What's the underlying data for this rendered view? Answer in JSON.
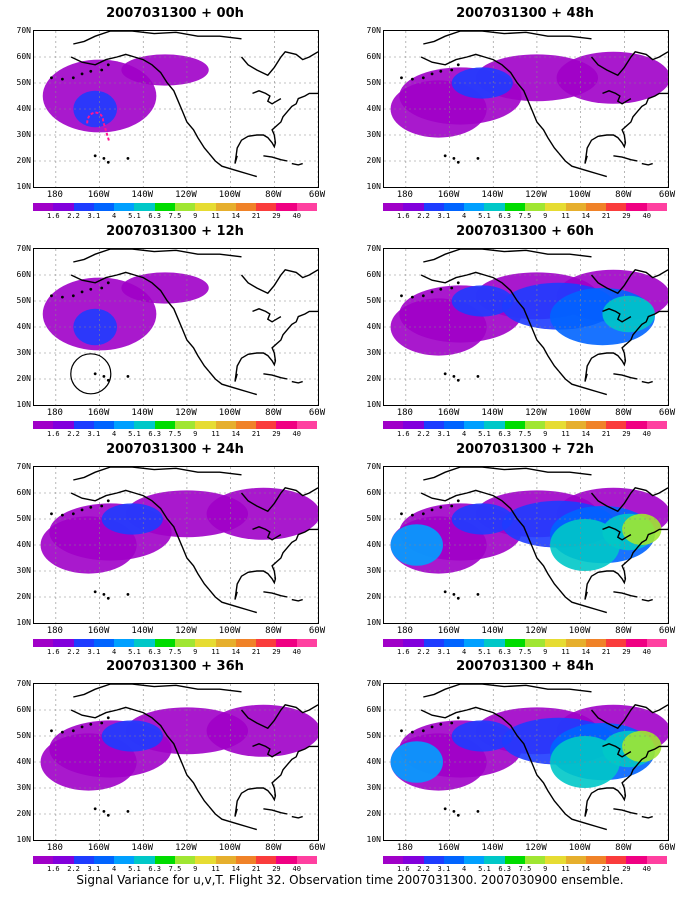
{
  "panels": [
    {
      "title": "2007031300 + 00h",
      "col": 0,
      "row": 0,
      "intensity": 1,
      "mark": "dashed"
    },
    {
      "title": "2007031300 + 48h",
      "col": 1,
      "row": 0,
      "intensity": 2,
      "mark": ""
    },
    {
      "title": "2007031300 + 12h",
      "col": 0,
      "row": 1,
      "intensity": 1,
      "mark": "circle"
    },
    {
      "title": "2007031300 + 60h",
      "col": 1,
      "row": 1,
      "intensity": 3,
      "mark": ""
    },
    {
      "title": "2007031300 + 24h",
      "col": 0,
      "row": 2,
      "intensity": 2,
      "mark": ""
    },
    {
      "title": "2007031300 + 72h",
      "col": 1,
      "row": 2,
      "intensity": 4,
      "mark": ""
    },
    {
      "title": "2007031300 + 36h",
      "col": 0,
      "row": 3,
      "intensity": 2,
      "mark": ""
    },
    {
      "title": "2007031300 + 84h",
      "col": 1,
      "row": 3,
      "intensity": 4,
      "mark": ""
    }
  ],
  "lat_labels": [
    "70N",
    "60N",
    "50N",
    "40N",
    "30N",
    "20N",
    "10N"
  ],
  "lon_labels": [
    "180",
    "160W",
    "140W",
    "120W",
    "100W",
    "80W",
    "60W"
  ],
  "colorbar": {
    "labels": [
      "1.6",
      "2.2",
      "3.1",
      "4",
      "5.1",
      "6.3",
      "7.5",
      "9",
      "11",
      "14",
      "21",
      "29",
      "40"
    ],
    "colors": [
      "#a000c8",
      "#8200dc",
      "#1e3cff",
      "#0064ff",
      "#00a0ff",
      "#00c8c8",
      "#00dc00",
      "#a0e632",
      "#e6dc32",
      "#e6af2d",
      "#f08228",
      "#fa3c3c",
      "#f00082"
    ]
  },
  "caption": "Signal Variance for u,v,T. Flight 32. Observation time 2007031300. 2007030900 ensemble."
}
